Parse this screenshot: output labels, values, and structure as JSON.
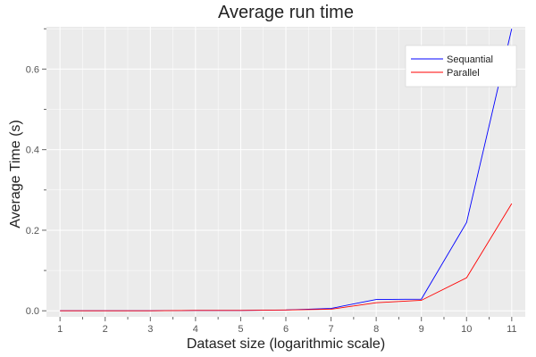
{
  "chart_data": {
    "type": "line",
    "title": "Average run time",
    "xlabel": "Dataset size (logarithmic scale)",
    "ylabel": "Average Time (s)",
    "x": [
      1,
      2,
      3,
      4,
      5,
      6,
      7,
      8,
      9,
      10,
      11
    ],
    "xlim": [
      0.7,
      11.3
    ],
    "ylim": [
      -0.015,
      0.705
    ],
    "xticks": [
      "1",
      "2",
      "3",
      "4",
      "5",
      "6",
      "7",
      "8",
      "9",
      "10",
      "11"
    ],
    "yticks": [
      "0.0",
      "0.2",
      "0.4",
      "0.6"
    ],
    "grid": true,
    "legend_position": "top-right",
    "series": [
      {
        "name": "Sequantial",
        "color": "#0000ff",
        "values": [
          0.0,
          0.0,
          0.0,
          0.001,
          0.001,
          0.002,
          0.006,
          0.028,
          0.029,
          0.219,
          0.7
        ]
      },
      {
        "name": "Parallel",
        "color": "#ff0000",
        "values": [
          0.0,
          0.0,
          0.0,
          0.001,
          0.001,
          0.002,
          0.004,
          0.02,
          0.026,
          0.082,
          0.266
        ]
      }
    ]
  },
  "style": {
    "panel_background": "#ebebeb",
    "grid_color": "#ffffff"
  }
}
